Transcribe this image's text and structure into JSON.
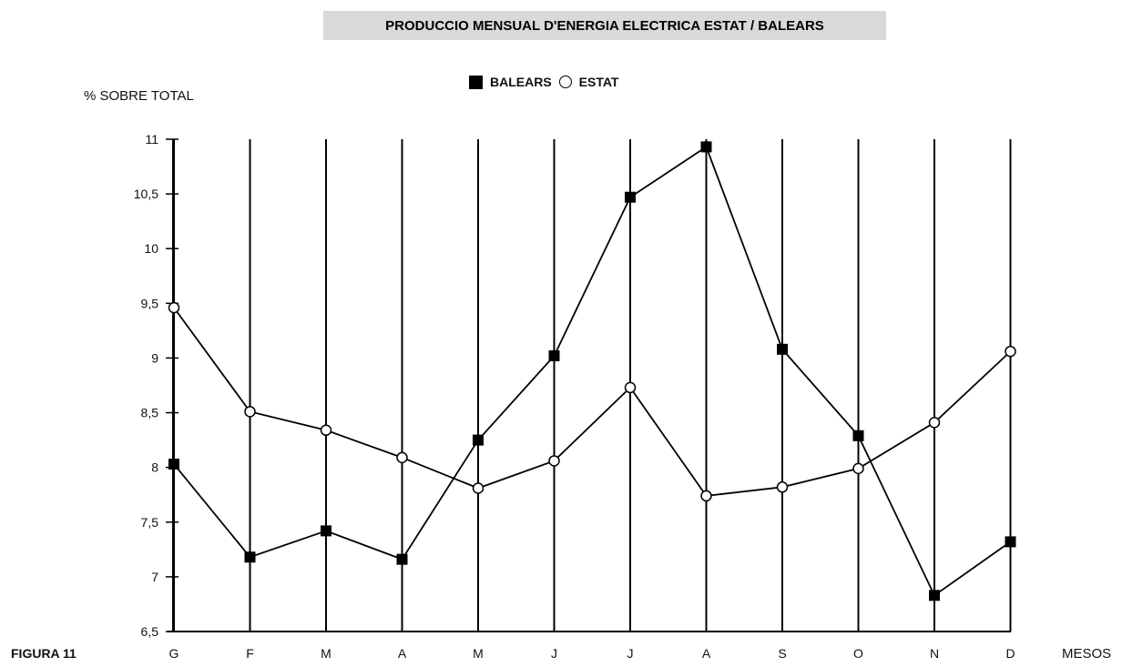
{
  "figure_label": "FIGURA 11",
  "legend": {
    "balears": "BALEARS",
    "estat": "ESTAT"
  },
  "colors": {
    "line": "#000000",
    "title_band": "#d9d9d9",
    "background": "#ffffff"
  },
  "chart_data": {
    "type": "line",
    "title": "PRODUCCIO MENSUAL D'ENERGIA ELECTRICA ESTAT / BALEARS",
    "ylabel": "% SOBRE TOTAL",
    "xlabel": "MESOS",
    "categories": [
      "G",
      "F",
      "M",
      "A",
      "M",
      "J",
      "J",
      "A",
      "S",
      "O",
      "N",
      "D"
    ],
    "ylim": [
      6.5,
      11
    ],
    "yticks": [
      6.5,
      7,
      7.5,
      8,
      8.5,
      9,
      9.5,
      10,
      10.5,
      11
    ],
    "ytick_labels": [
      "6,5",
      "7",
      "7,5",
      "8",
      "8,5",
      "9",
      "9,5",
      "10",
      "10,5",
      "11"
    ],
    "grid": "vertical",
    "legend_position": "top-center",
    "series": [
      {
        "name": "BALEARS",
        "marker": "filled-square",
        "values": [
          8.03,
          7.18,
          7.42,
          7.16,
          8.25,
          9.02,
          10.47,
          10.93,
          9.08,
          8.29,
          6.83,
          7.32
        ]
      },
      {
        "name": "ESTAT",
        "marker": "open-circle",
        "values": [
          9.46,
          8.51,
          8.34,
          8.09,
          7.81,
          8.06,
          8.73,
          7.74,
          7.82,
          7.99,
          8.41,
          9.06
        ]
      }
    ]
  }
}
